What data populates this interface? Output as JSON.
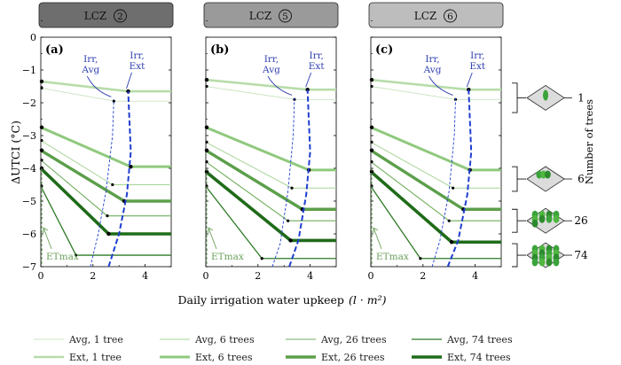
{
  "colors": {
    "avg_1": "#c9e4bf",
    "ext_1": "#b7dcaa",
    "avg_6": "#a6d596",
    "ext_6": "#8fc97d",
    "avg_26": "#6fae5c",
    "ext_26": "#5c9f4b",
    "avg_74": "#2f7a26",
    "ext_74": "#1f6b19",
    "irr": "#1f3fd0",
    "annot": "#2f3fb0",
    "etmax": "#6aa05a"
  },
  "chart_data": {
    "type": "line",
    "xlabel": "Daily irrigation water upkeep",
    "xlabel_unit": "(l · m²)",
    "ylabel": "ΔUTCI (°C)",
    "xlim": [
      0,
      5
    ],
    "ylim": [
      -7,
      0
    ],
    "xticks": [
      "0",
      "2",
      "4"
    ],
    "yticks": [
      "0",
      "−1",
      "−2",
      "−3",
      "−4",
      "−5",
      "−6",
      "−7"
    ],
    "side_label": "Number of trees",
    "side_ticks": [
      "1",
      "6",
      "26",
      "74"
    ],
    "annotations": {
      "irr_avg": [
        "Irr,",
        "Avg"
      ],
      "irr_ext": [
        "Irr,",
        "Ext"
      ],
      "etmax": "ETmax"
    },
    "panels": [
      {
        "title": "LCZ",
        "lcz": "2",
        "label": "(a)",
        "header_color": "#6e6e6e",
        "irr_avg": [
          [
            1.9,
            -7.0
          ],
          [
            2.2,
            -6.0
          ],
          [
            2.5,
            -4.7
          ],
          [
            2.75,
            -3.0
          ],
          [
            2.8,
            -1.9
          ]
        ],
        "irr_ext": [
          [
            2.6,
            -7.0
          ],
          [
            3.0,
            -6.0
          ],
          [
            3.3,
            -4.8
          ],
          [
            3.45,
            -3.5
          ],
          [
            3.35,
            -1.65
          ]
        ],
        "series": [
          {
            "name": "Avg, 1 tree",
            "style": "avg",
            "trees": 1,
            "values": [
              [
                0,
                -1.55
              ],
              [
                2.8,
                -1.95
              ],
              [
                5,
                -1.95
              ]
            ]
          },
          {
            "name": "Ext, 1 tree",
            "style": "ext",
            "trees": 1,
            "values": [
              [
                0,
                -1.35
              ],
              [
                3.35,
                -1.65
              ],
              [
                5,
                -1.65
              ]
            ]
          },
          {
            "name": "Avg, 6 trees",
            "style": "avg",
            "trees": 6,
            "values": [
              [
                0,
                -3.15
              ],
              [
                2.75,
                -4.5
              ],
              [
                5,
                -4.5
              ]
            ]
          },
          {
            "name": "Ext, 6 trees",
            "style": "ext",
            "trees": 6,
            "values": [
              [
                0,
                -2.75
              ],
              [
                3.45,
                -3.95
              ],
              [
                5,
                -3.95
              ]
            ]
          },
          {
            "name": "Avg, 26 trees",
            "style": "avg",
            "trees": 26,
            "values": [
              [
                0,
                -3.75
              ],
              [
                2.55,
                -5.45
              ],
              [
                5,
                -5.45
              ]
            ]
          },
          {
            "name": "Ext, 26 trees",
            "style": "ext",
            "trees": 26,
            "values": [
              [
                0,
                -3.45
              ],
              [
                3.2,
                -5.0
              ],
              [
                5,
                -5.0
              ]
            ]
          },
          {
            "name": "Avg, 74 trees",
            "style": "avg",
            "trees": 74,
            "values": [
              [
                0,
                -4.55
              ],
              [
                1.35,
                -6.65
              ],
              [
                5,
                -6.65
              ]
            ]
          },
          {
            "name": "Ext, 74 trees",
            "style": "ext",
            "trees": 74,
            "values": [
              [
                0,
                -4.0
              ],
              [
                2.6,
                -6.0
              ],
              [
                5,
                -6.0
              ]
            ]
          }
        ]
      },
      {
        "title": "LCZ",
        "lcz": "5",
        "label": "(b)",
        "header_color": "#9a9a9a",
        "irr_avg": [
          [
            2.55,
            -7.0
          ],
          [
            2.85,
            -6.3
          ],
          [
            3.15,
            -4.7
          ],
          [
            3.35,
            -3.0
          ],
          [
            3.4,
            -1.85
          ]
        ],
        "irr_ext": [
          [
            3.2,
            -7.0
          ],
          [
            3.55,
            -6.2
          ],
          [
            3.85,
            -4.8
          ],
          [
            4.0,
            -3.5
          ],
          [
            3.9,
            -1.6
          ]
        ],
        "series": [
          {
            "name": "Avg, 1 tree",
            "style": "avg",
            "trees": 1,
            "values": [
              [
                0,
                -1.5
              ],
              [
                3.4,
                -1.9
              ],
              [
                5,
                -1.9
              ]
            ]
          },
          {
            "name": "Ext, 1 tree",
            "style": "ext",
            "trees": 1,
            "values": [
              [
                0,
                -1.3
              ],
              [
                3.9,
                -1.6
              ],
              [
                5,
                -1.6
              ]
            ]
          },
          {
            "name": "Avg, 6 trees",
            "style": "avg",
            "trees": 6,
            "values": [
              [
                0,
                -3.2
              ],
              [
                3.3,
                -4.6
              ],
              [
                5,
                -4.6
              ]
            ]
          },
          {
            "name": "Ext, 6 trees",
            "style": "ext",
            "trees": 6,
            "values": [
              [
                0,
                -2.75
              ],
              [
                3.95,
                -4.05
              ],
              [
                5,
                -4.05
              ]
            ]
          },
          {
            "name": "Avg, 26 trees",
            "style": "avg",
            "trees": 26,
            "values": [
              [
                0,
                -3.8
              ],
              [
                3.15,
                -5.6
              ],
              [
                5,
                -5.6
              ]
            ]
          },
          {
            "name": "Ext, 26 trees",
            "style": "ext",
            "trees": 26,
            "values": [
              [
                0,
                -3.45
              ],
              [
                3.7,
                -5.25
              ],
              [
                5,
                -5.25
              ]
            ]
          },
          {
            "name": "Avg, 74 trees",
            "style": "avg",
            "trees": 74,
            "values": [
              [
                0,
                -4.55
              ],
              [
                2.15,
                -6.75
              ],
              [
                5,
                -6.75
              ]
            ]
          },
          {
            "name": "Ext, 74 trees",
            "style": "ext",
            "trees": 74,
            "values": [
              [
                0,
                -4.1
              ],
              [
                3.25,
                -6.2
              ],
              [
                5,
                -6.2
              ]
            ]
          }
        ]
      },
      {
        "title": "LCZ",
        "lcz": "6",
        "label": "(c)",
        "header_color": "#bdbdbd",
        "irr_avg": [
          [
            2.35,
            -7.0
          ],
          [
            2.65,
            -6.2
          ],
          [
            3.0,
            -4.7
          ],
          [
            3.2,
            -3.0
          ],
          [
            3.25,
            -1.85
          ]
        ],
        "irr_ext": [
          [
            2.95,
            -7.0
          ],
          [
            3.35,
            -6.2
          ],
          [
            3.7,
            -4.8
          ],
          [
            3.85,
            -3.5
          ],
          [
            3.75,
            -1.6
          ]
        ],
        "series": [
          {
            "name": "Avg, 1 tree",
            "style": "avg",
            "trees": 1,
            "values": [
              [
                0,
                -1.5
              ],
              [
                3.25,
                -1.9
              ],
              [
                5,
                -1.9
              ]
            ]
          },
          {
            "name": "Ext, 1 tree",
            "style": "ext",
            "trees": 1,
            "values": [
              [
                0,
                -1.3
              ],
              [
                3.75,
                -1.6
              ],
              [
                5,
                -1.6
              ]
            ]
          },
          {
            "name": "Avg, 6 trees",
            "style": "avg",
            "trees": 6,
            "values": [
              [
                0,
                -3.2
              ],
              [
                3.15,
                -4.6
              ],
              [
                5,
                -4.6
              ]
            ]
          },
          {
            "name": "Ext, 6 trees",
            "style": "ext",
            "trees": 6,
            "values": [
              [
                0,
                -2.75
              ],
              [
                3.8,
                -4.05
              ],
              [
                5,
                -4.05
              ]
            ]
          },
          {
            "name": "Avg, 26 trees",
            "style": "avg",
            "trees": 26,
            "values": [
              [
                0,
                -3.8
              ],
              [
                3.0,
                -5.6
              ],
              [
                5,
                -5.6
              ]
            ]
          },
          {
            "name": "Ext, 26 trees",
            "style": "ext",
            "trees": 26,
            "values": [
              [
                0,
                -3.45
              ],
              [
                3.55,
                -5.25
              ],
              [
                5,
                -5.25
              ]
            ]
          },
          {
            "name": "Avg, 74 trees",
            "style": "avg",
            "trees": 74,
            "values": [
              [
                0,
                -4.55
              ],
              [
                1.9,
                -6.75
              ],
              [
                5,
                -6.75
              ]
            ]
          },
          {
            "name": "Ext, 74 trees",
            "style": "ext",
            "trees": 74,
            "values": [
              [
                0,
                -4.1
              ],
              [
                3.1,
                -6.25
              ],
              [
                5,
                -6.25
              ]
            ]
          }
        ]
      }
    ],
    "legend": [
      {
        "name": "Avg, 1 tree",
        "style": "avg",
        "trees": 1
      },
      {
        "name": "Avg, 6 trees",
        "style": "avg",
        "trees": 6
      },
      {
        "name": "Avg, 26 trees",
        "style": "avg",
        "trees": 26
      },
      {
        "name": "Avg, 74 trees",
        "style": "avg",
        "trees": 74
      },
      {
        "name": "Ext, 1 tree",
        "style": "ext",
        "trees": 1
      },
      {
        "name": "Ext, 6 trees",
        "style": "ext",
        "trees": 6
      },
      {
        "name": "Ext, 26 trees",
        "style": "ext",
        "trees": 26
      },
      {
        "name": "Ext, 74 trees",
        "style": "ext",
        "trees": 74
      }
    ],
    "tree_groups": [
      {
        "trees": 1,
        "y_range": [
          -2.3,
          -1.4
        ]
      },
      {
        "trees": 6,
        "y_range": [
          -4.7,
          -3.95
        ]
      },
      {
        "trees": 26,
        "y_range": [
          -5.95,
          -5.25
        ]
      },
      {
        "trees": 74,
        "y_range": [
          -7.0,
          -6.3
        ]
      }
    ]
  }
}
